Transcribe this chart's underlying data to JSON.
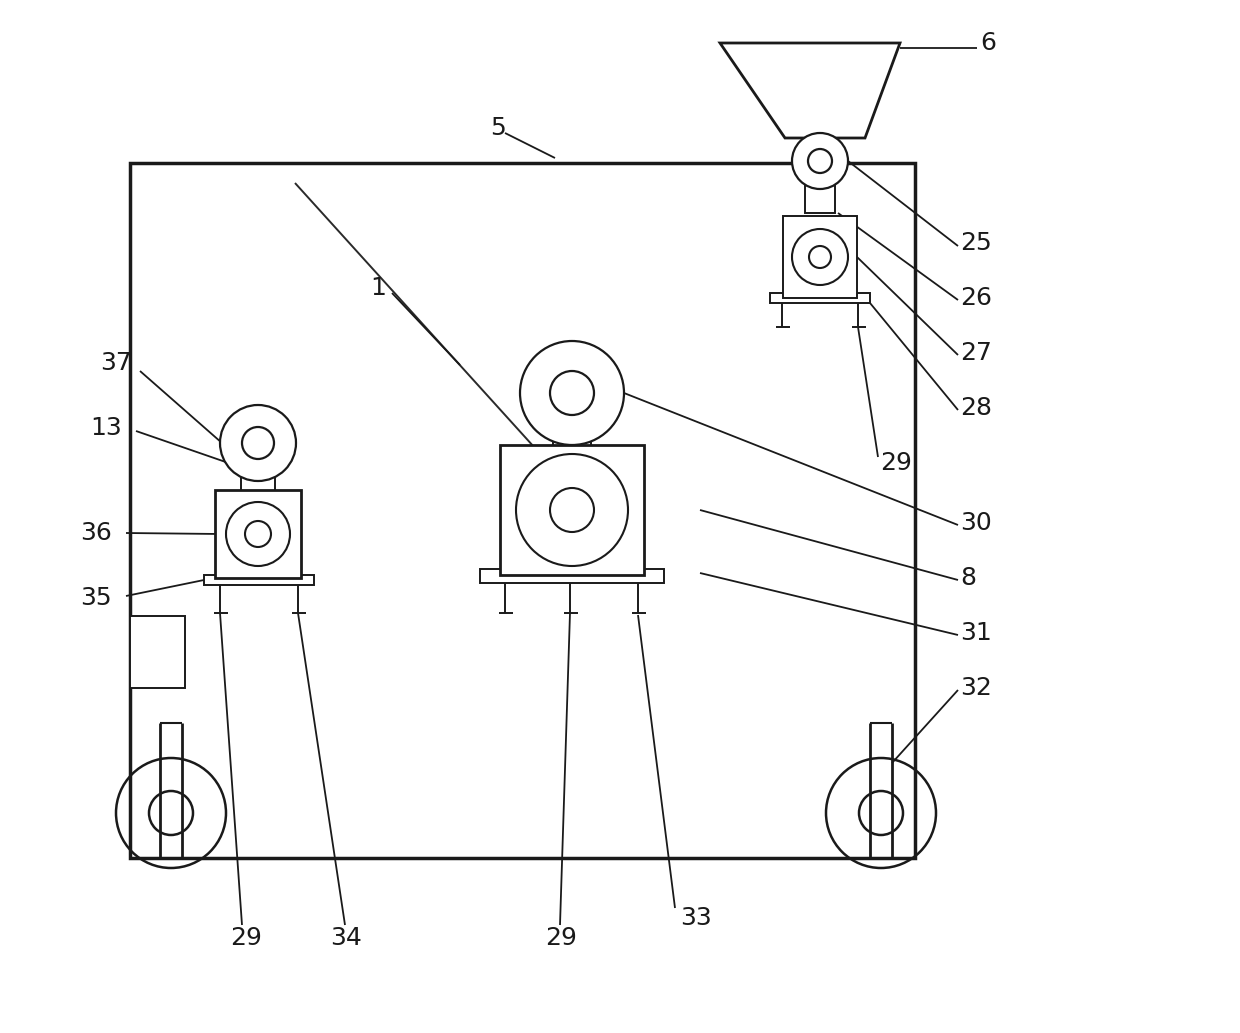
{
  "bg_color": "#ffffff",
  "line_color": "#1a1a1a",
  "lw": 2.0,
  "thin_lw": 1.4,
  "fig_width": 12.4,
  "fig_height": 10.33
}
